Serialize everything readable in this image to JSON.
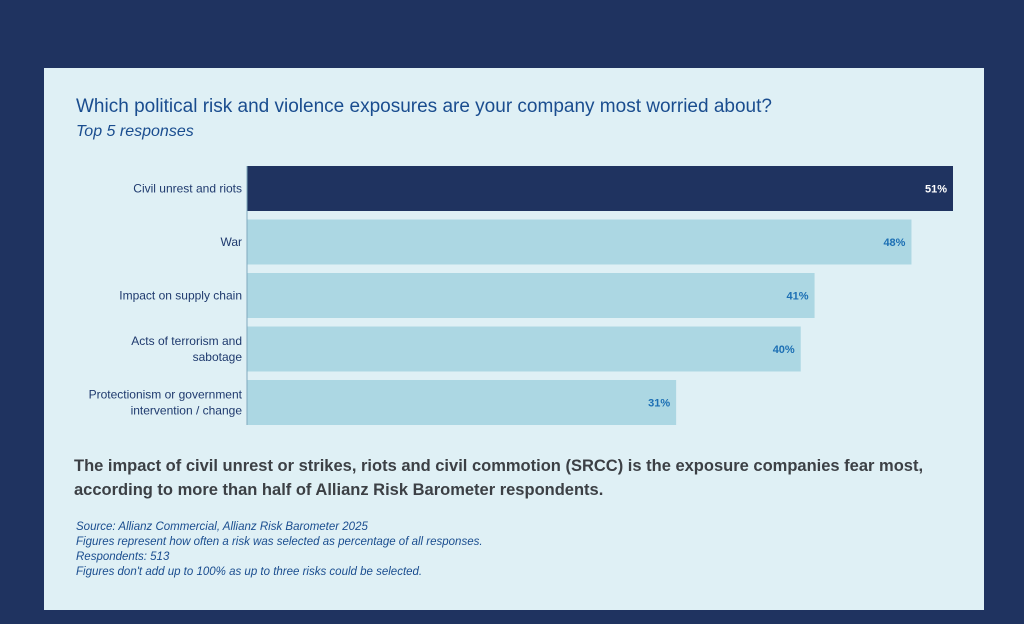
{
  "title": "Which political risk and violence exposures are your company most worried about?",
  "subtitle": "Top 5 responses",
  "summary": "The impact of civil unrest or strikes, riots and civil commotion (SRCC) is the exposure companies fear most, according to more than half of Allianz Risk Barometer respondents.",
  "footnotes": {
    "source": "Source: Allianz Commercial, Allianz Risk Barometer 2025",
    "figures": "Figures represent how often a risk was selected as percentage of all responses.",
    "respondents": "Respondents: 513",
    "note": "Figures don't add up to 100% as up to three risks could be selected."
  },
  "colors": {
    "highlight_bar": "#1f3360",
    "bar": "#acd7e3",
    "highlight_label": "#ffffff",
    "label": "#1c6fb4"
  },
  "chart_data": {
    "type": "bar",
    "orientation": "horizontal",
    "title": "Which political risk and violence exposures are your company most worried about?",
    "categories": [
      [
        "Civil unrest and riots"
      ],
      [
        "War"
      ],
      [
        "Impact on supply chain"
      ],
      [
        "Acts of terrorism and",
        "sabotage"
      ],
      [
        "Protectionism or government",
        "intervention / change"
      ]
    ],
    "values": [
      51,
      48,
      41,
      40,
      31
    ],
    "value_labels": [
      "51%",
      "48%",
      "41%",
      "40%",
      "31%"
    ],
    "highlight_index": 0,
    "xlim": [
      0,
      51
    ],
    "unit": "%"
  }
}
